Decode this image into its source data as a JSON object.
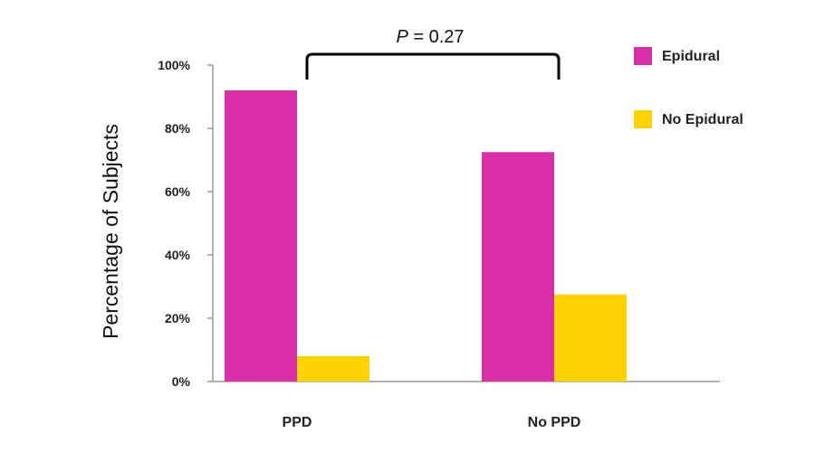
{
  "chart_data": {
    "type": "bar",
    "categories": [
      "PPD",
      "No PPD"
    ],
    "series": [
      {
        "name": "Epidural",
        "values": [
          92,
          72.5
        ],
        "color": "#d92ea8"
      },
      {
        "name": "No Epidural",
        "values": [
          8,
          27.5
        ],
        "color": "#ffd200"
      }
    ],
    "title": "",
    "xlabel": "",
    "ylabel": "Percentage of Subjects",
    "ylim": [
      0,
      100
    ],
    "yticks": [
      0,
      20,
      40,
      60,
      80,
      100
    ],
    "ytick_labels": [
      "0%",
      "20%",
      "40%",
      "60%",
      "80%",
      "100%"
    ],
    "grid": false,
    "legend_position": "right",
    "annotation": {
      "italic_part": "P",
      "rest": " = 0.27",
      "text": "P = 0.27",
      "between": [
        "PPD",
        "No PPD"
      ]
    }
  }
}
